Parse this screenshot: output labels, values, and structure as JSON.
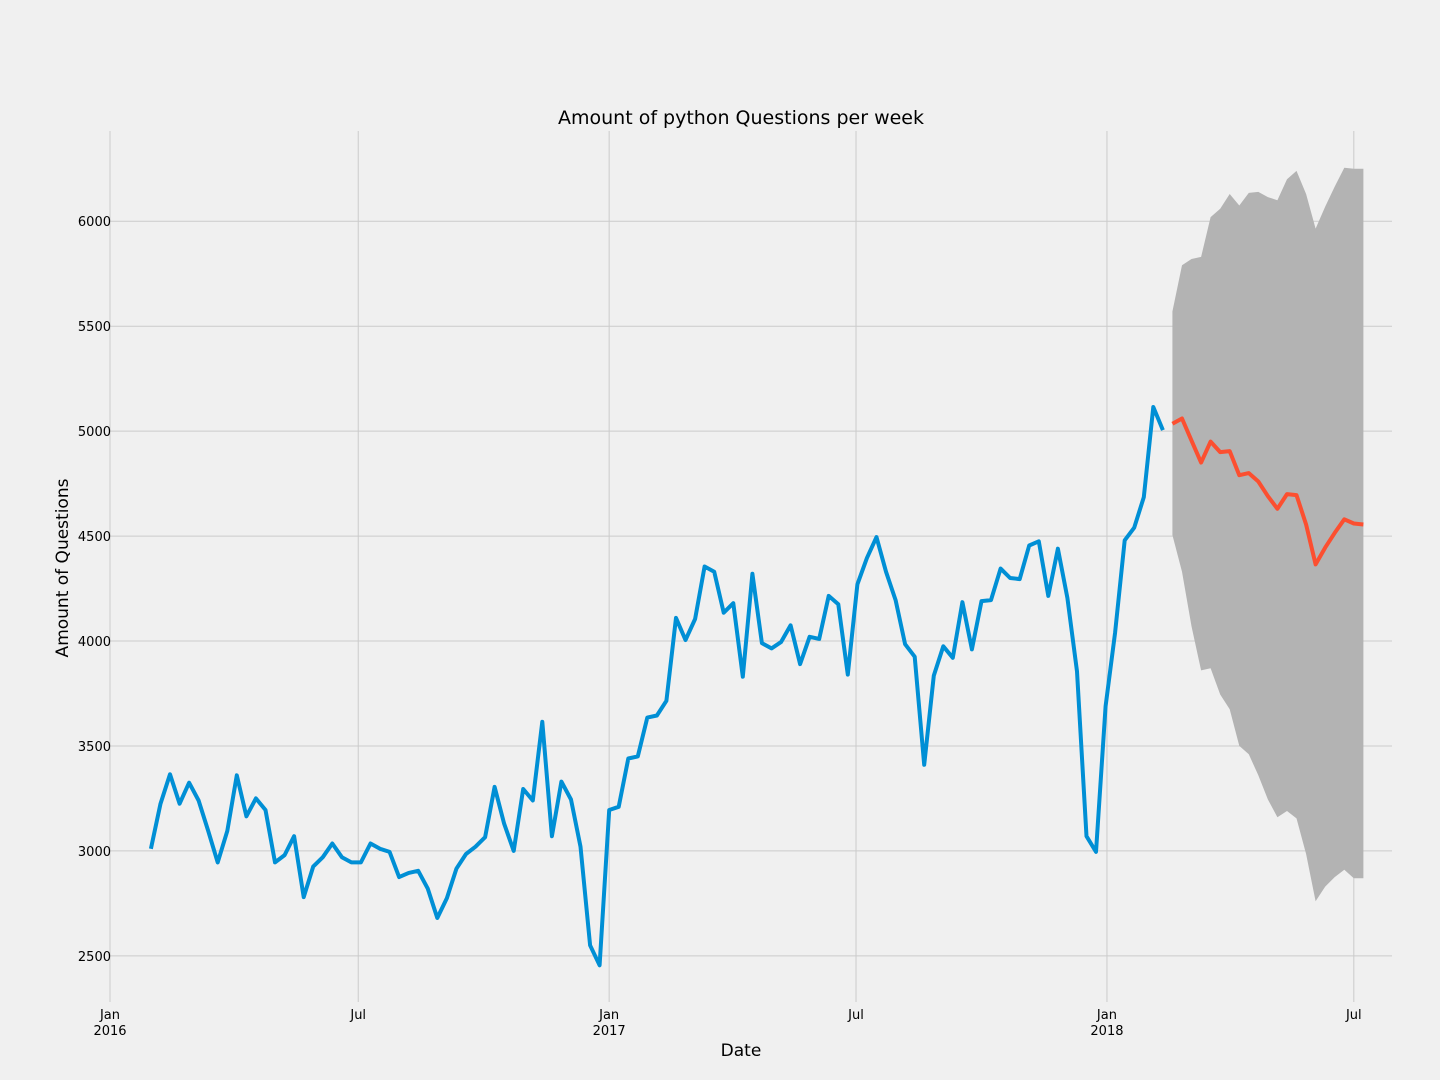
{
  "chart_data": {
    "type": "line",
    "title": "Amount of python Questions per week",
    "xlabel": "Date",
    "ylabel": "Amount of Questions",
    "x_axis": "date",
    "xlim": [
      "2016-01-01",
      "2018-07-29"
    ],
    "ylim": [
      2280,
      6430
    ],
    "grid": true,
    "colors": {
      "background": "#f0f0f0",
      "grid": "#cbcbcb",
      "observed": "#008fd5",
      "forecast": "#fc4f30",
      "confidence": "#b3b3b3"
    },
    "x_ticks": [
      {
        "date": "2016-01-01",
        "label": "Jan",
        "label2": "2016"
      },
      {
        "date": "2016-07-01",
        "label": "Jul",
        "label2": ""
      },
      {
        "date": "2017-01-01",
        "label": "Jan",
        "label2": "2017"
      },
      {
        "date": "2017-07-01",
        "label": "Jul",
        "label2": ""
      },
      {
        "date": "2018-01-01",
        "label": "Jan",
        "label2": "2018"
      },
      {
        "date": "2018-07-01",
        "label": "Jul",
        "label2": ""
      }
    ],
    "y_ticks": [
      2500,
      3000,
      3500,
      4000,
      4500,
      5000,
      5500,
      6000
    ],
    "series": [
      {
        "role": "observed",
        "x": [
          "2016-01-31",
          "2016-02-07",
          "2016-02-14",
          "2016-02-21",
          "2016-02-28",
          "2016-03-06",
          "2016-03-13",
          "2016-03-20",
          "2016-03-27",
          "2016-04-03",
          "2016-04-10",
          "2016-04-17",
          "2016-04-24",
          "2016-05-01",
          "2016-05-08",
          "2016-05-15",
          "2016-05-22",
          "2016-05-29",
          "2016-06-05",
          "2016-06-12",
          "2016-06-19",
          "2016-06-26",
          "2016-07-03",
          "2016-07-10",
          "2016-07-17",
          "2016-07-24",
          "2016-07-31",
          "2016-08-07",
          "2016-08-14",
          "2016-08-21",
          "2016-08-28",
          "2016-09-04",
          "2016-09-11",
          "2016-09-18",
          "2016-09-25",
          "2016-10-02",
          "2016-10-09",
          "2016-10-16",
          "2016-10-23",
          "2016-10-30",
          "2016-11-06",
          "2016-11-13",
          "2016-11-20",
          "2016-11-27",
          "2016-12-04",
          "2016-12-11",
          "2016-12-18",
          "2016-12-25",
          "2017-01-01",
          "2017-01-08",
          "2017-01-15",
          "2017-01-22",
          "2017-01-29",
          "2017-02-05",
          "2017-02-12",
          "2017-02-19",
          "2017-02-26",
          "2017-03-05",
          "2017-03-12",
          "2017-03-19",
          "2017-03-26",
          "2017-04-02",
          "2017-04-09",
          "2017-04-16",
          "2017-04-23",
          "2017-04-30",
          "2017-05-07",
          "2017-05-14",
          "2017-05-21",
          "2017-05-28",
          "2017-06-04",
          "2017-06-11",
          "2017-06-18",
          "2017-06-25",
          "2017-07-02",
          "2017-07-09",
          "2017-07-16",
          "2017-07-23",
          "2017-07-30",
          "2017-08-06",
          "2017-08-13",
          "2017-08-20",
          "2017-08-27",
          "2017-09-03",
          "2017-09-10",
          "2017-09-17",
          "2017-09-24",
          "2017-10-01",
          "2017-10-08",
          "2017-10-15",
          "2017-10-22",
          "2017-10-29",
          "2017-11-05",
          "2017-11-12",
          "2017-11-19",
          "2017-11-26",
          "2017-12-03",
          "2017-12-10",
          "2017-12-17",
          "2017-12-24",
          "2017-12-31",
          "2018-01-07",
          "2018-01-14",
          "2018-01-21",
          "2018-01-28",
          "2018-02-04",
          "2018-02-11"
        ],
        "y": [
          3010,
          3225,
          3365,
          3225,
          3325,
          3240,
          3095,
          2945,
          3095,
          3360,
          3165,
          3250,
          3195,
          2945,
          2980,
          3070,
          2780,
          2925,
          2970,
          3035,
          2970,
          2945,
          2945,
          3035,
          3010,
          2995,
          2875,
          2895,
          2905,
          2820,
          2680,
          2775,
          2915,
          2985,
          3020,
          3065,
          3305,
          3130,
          3000,
          3295,
          3240,
          3615,
          3070,
          3330,
          3245,
          3020,
          2550,
          2455,
          3195,
          3210,
          3440,
          3450,
          3635,
          3645,
          3715,
          4110,
          4005,
          4105,
          4355,
          4330,
          4135,
          4180,
          3830,
          4320,
          3990,
          3965,
          3995,
          4075,
          3890,
          4020,
          4010,
          4215,
          4175,
          3840,
          4270,
          4395,
          4495,
          4330,
          4195,
          3985,
          3925,
          3410,
          3835,
          3975,
          3920,
          4185,
          3960,
          4190,
          4195,
          4345,
          4300,
          4295,
          4455,
          4475,
          4215,
          4440,
          4205,
          3855,
          3070,
          2995,
          3690,
          4040,
          4480,
          4540,
          4685,
          5115,
          5005
        ]
      },
      {
        "role": "forecast",
        "x": [
          "2018-02-18",
          "2018-02-25",
          "2018-03-04",
          "2018-03-11",
          "2018-03-18",
          "2018-03-25",
          "2018-04-01",
          "2018-04-08",
          "2018-04-15",
          "2018-04-22",
          "2018-04-29",
          "2018-05-06",
          "2018-05-13",
          "2018-05-20",
          "2018-05-27",
          "2018-06-03",
          "2018-06-10",
          "2018-06-17",
          "2018-06-24",
          "2018-07-01",
          "2018-07-08"
        ],
        "y": [
          5035,
          5060,
          4955,
          4850,
          4950,
          4900,
          4905,
          4790,
          4800,
          4760,
          4690,
          4630,
          4700,
          4695,
          4555,
          4365,
          4445,
          4515,
          4580,
          4560,
          4555
        ],
        "lower": [
          4505,
          4330,
          4070,
          3860,
          3870,
          3745,
          3675,
          3500,
          3460,
          3360,
          3245,
          3160,
          3190,
          3155,
          2985,
          2760,
          2830,
          2875,
          2910,
          2870,
          2870
        ],
        "upper": [
          5570,
          5790,
          5820,
          5830,
          6020,
          6060,
          6130,
          6075,
          6135,
          6140,
          6115,
          6100,
          6200,
          6240,
          6130,
          5965,
          6070,
          6165,
          6255,
          6250,
          6250
        ]
      }
    ]
  }
}
